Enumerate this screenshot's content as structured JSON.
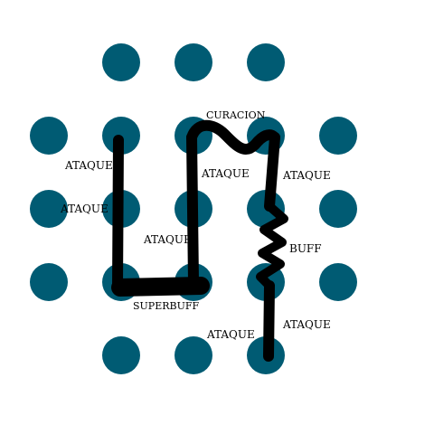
{
  "board": {
    "dot_color": "#005b73",
    "stroke_color": "#000000",
    "background": "#ffffff",
    "grid": {
      "rows": [
        {
          "row": 0,
          "cols": [
            1,
            2,
            3
          ]
        },
        {
          "row": 1,
          "cols": [
            0,
            1,
            2,
            3,
            4
          ]
        },
        {
          "row": 2,
          "cols": [
            0,
            1,
            2,
            3,
            4
          ]
        },
        {
          "row": 3,
          "cols": [
            0,
            1,
            2,
            3,
            4
          ]
        },
        {
          "row": 4,
          "cols": [
            1,
            2,
            3
          ]
        }
      ]
    }
  },
  "labels": {
    "curacion": "CURACION",
    "ataque_left_top": "ATAQUE",
    "ataque_left_mid": "ATAQUE",
    "ataque_center_top": "ATAQUE",
    "ataque_center_mid": "ATAQUE",
    "ataque_right_top": "ATAQUE",
    "buff": "BUFF",
    "superbuff": "SUPERBUFF",
    "ataque_bottom_center": "ATAQUE",
    "ataque_bottom_right": "ATAQUE"
  }
}
